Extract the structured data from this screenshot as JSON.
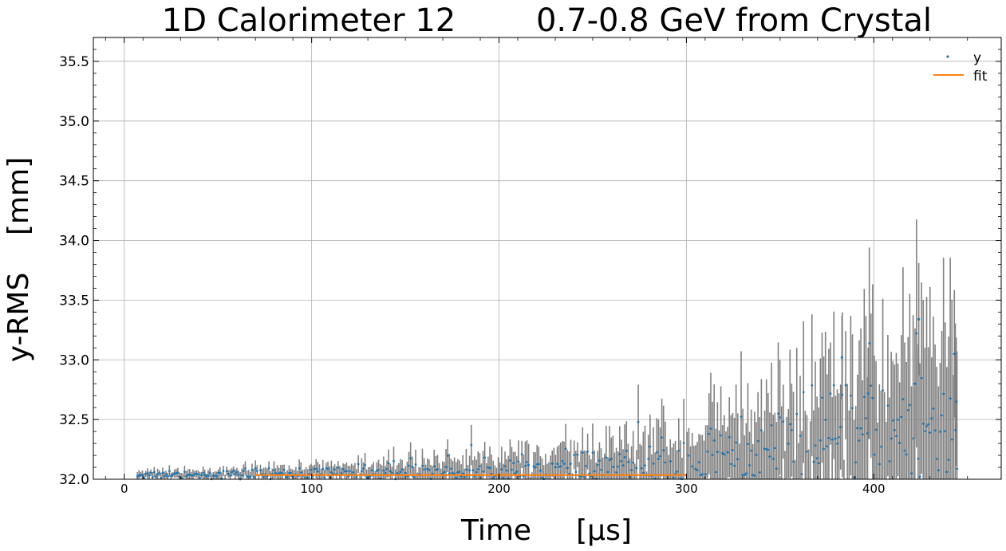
{
  "chart_data": {
    "type": "scatter",
    "title_left": "1D Calorimeter 12",
    "title_right": "0.7-0.8 GeV from Crystal",
    "xlabel_main": "Time",
    "xlabel_unit": "[μs]",
    "ylabel_main": "y-RMS",
    "ylabel_unit": "[mm]",
    "xlim": [
      -16.5,
      468
    ],
    "ylim": [
      32.0,
      35.7
    ],
    "xticks": [
      0,
      100,
      200,
      300,
      400
    ],
    "xtick_labels": [
      "0",
      "100",
      "200",
      "300",
      "400"
    ],
    "yticks": [
      32.0,
      32.5,
      33.0,
      33.5,
      34.0,
      34.5,
      35.0,
      35.5
    ],
    "ytick_labels": [
      "32.0",
      "32.5",
      "33.0",
      "33.5",
      "34.0",
      "34.5",
      "35.0",
      "35.5"
    ],
    "grid": true,
    "legend_position": "top-right",
    "legend": [
      "y",
      "fit"
    ],
    "colors": {
      "points": "#1f77b4",
      "fit": "#ff7f0e",
      "errorbars": "#808080"
    },
    "series": [
      {
        "name": "y",
        "style": "points-with-errorbars",
        "x_range": [
          7,
          445
        ],
        "x_step": 0.9,
        "trend_y": [
          [
            7,
            32.04
          ],
          [
            50,
            32.04
          ],
          [
            100,
            32.05
          ],
          [
            150,
            32.06
          ],
          [
            200,
            32.07
          ],
          [
            250,
            32.08
          ],
          [
            300,
            32.1
          ],
          [
            350,
            32.17
          ],
          [
            400,
            32.35
          ],
          [
            445,
            32.45
          ]
        ],
        "error_halfwidth": [
          [
            7,
            0.03
          ],
          [
            50,
            0.04
          ],
          [
            100,
            0.06
          ],
          [
            150,
            0.09
          ],
          [
            200,
            0.13
          ],
          [
            250,
            0.18
          ],
          [
            300,
            0.28
          ],
          [
            350,
            0.45
          ],
          [
            400,
            0.65
          ],
          [
            445,
            0.9
          ]
        ],
        "highlights": [
          [
            383,
            33.02
          ],
          [
            424,
            33.34
          ],
          [
            443,
            33.05
          ],
          [
            422,
            32.8
          ],
          [
            397,
            32.72
          ],
          [
            444,
            32.65
          ]
        ]
      },
      {
        "name": "fit",
        "style": "line",
        "x": [
          70,
          300
        ],
        "y": [
          32.035,
          32.035
        ]
      }
    ]
  }
}
